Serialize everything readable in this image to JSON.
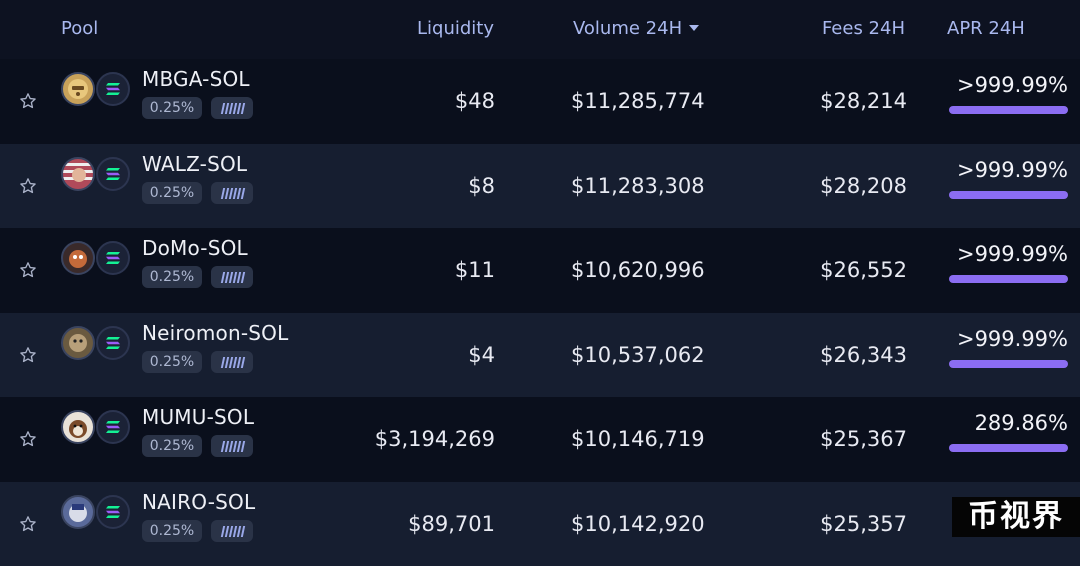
{
  "header": {
    "pool": "Pool",
    "liquidity": "Liquidity",
    "volume": "Volume 24H",
    "fees": "Fees 24H",
    "apr": "APR 24H"
  },
  "rows": [
    {
      "pair": "MBGA-SOL",
      "fee": "0.25%",
      "liquidity": "$48",
      "volume": "$11,285,774",
      "fees": "$28,214",
      "apr": "&gt;999.99%",
      "token_color": "#c9a25a"
    },
    {
      "pair": "WALZ-SOL",
      "fee": "0.25%",
      "liquidity": "$8",
      "volume": "$11,283,308",
      "fees": "$28,208",
      "apr": ">999.99%",
      "token_color": "#b04a5a"
    },
    {
      "pair": "DoMo-SOL",
      "fee": "0.25%",
      "liquidity": "$11",
      "volume": "$10,620,996",
      "fees": "$26,552",
      "apr": ">999.99%",
      "token_color": "#c46a3a"
    },
    {
      "pair": "Neiromon-SOL",
      "fee": "0.25%",
      "liquidity": "$4",
      "volume": "$10,537,062",
      "fees": "$26,343",
      "apr": ">999.99%",
      "token_color": "#8a7a5a"
    },
    {
      "pair": "MUMU-SOL",
      "fee": "0.25%",
      "liquidity": "$3,194,269",
      "volume": "$10,146,719",
      "fees": "$25,367",
      "apr": "289.86%",
      "token_color": "#e9e2d8"
    },
    {
      "pair": "NAIRO-SOL",
      "fee": "0.25%",
      "liquidity": "$89,701",
      "volume": "$10,142,920",
      "fees": "$25,357",
      "apr": "",
      "token_color": "#5a6a9a"
    }
  ],
  "watermark": "币视界",
  "colors": {
    "accent": "#8b6df2",
    "header_text": "#a9b8ee",
    "row_dark": "#0a0f1c",
    "row_light": "#161e30"
  },
  "icons": {
    "favorite": "star-icon",
    "base_token": "sol-icon",
    "volume_sort": "caret-down-icon"
  }
}
